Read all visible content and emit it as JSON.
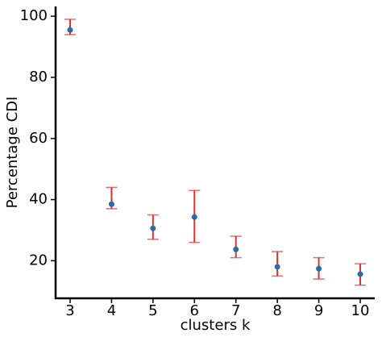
{
  "chart_data": {
    "type": "scatter",
    "x_label": "clusters k",
    "y_label": "Percentage CDI",
    "x": [
      3,
      4,
      5,
      6,
      7,
      8,
      9,
      10
    ],
    "values": [
      95.5,
      38.5,
      30.6,
      34.3,
      23.7,
      18,
      17.4,
      15.6
    ],
    "lower": [
      94,
      37,
      27,
      26,
      21,
      15,
      14,
      12
    ],
    "upper": [
      99,
      44,
      35,
      43,
      28,
      23,
      21,
      19
    ],
    "color": "#2e6aa8",
    "error_color": "#e0312f",
    "xlim": [
      2.65,
      10.35
    ],
    "ylim": [
      7.7,
      103.2
    ],
    "xticks": [
      3,
      4,
      5,
      6,
      7,
      8,
      9,
      10
    ],
    "yticks": [
      20,
      40,
      60,
      80,
      100
    ]
  }
}
